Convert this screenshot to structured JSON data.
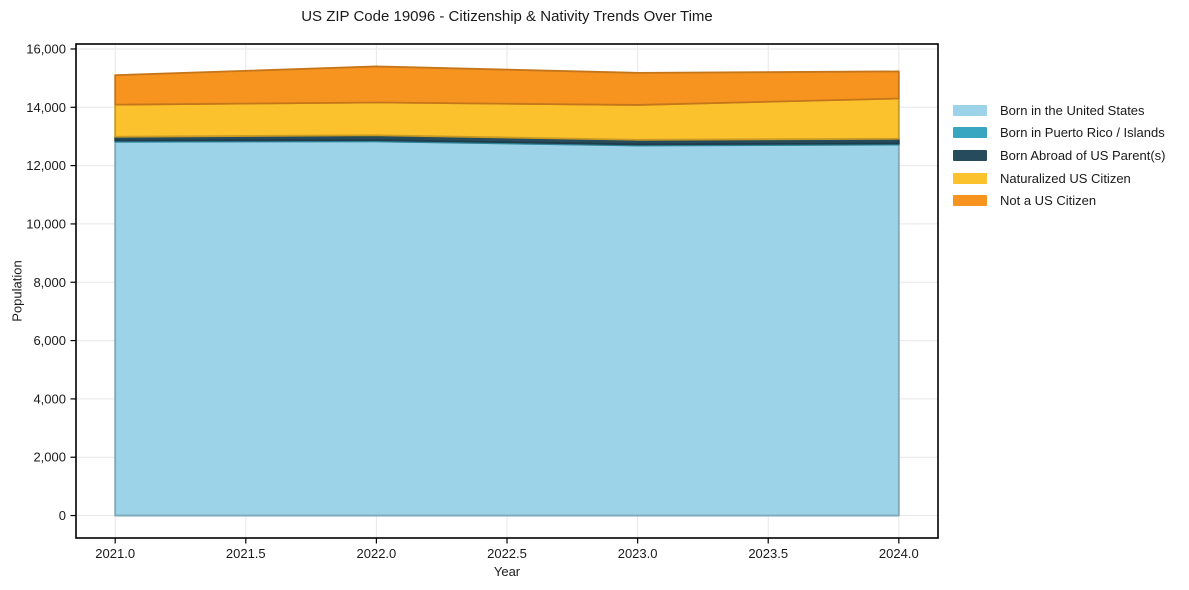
{
  "page": {
    "title": "US ZIP Code 19096 - Citizenship & Nativity Trends Over Time"
  },
  "chart_data": {
    "type": "area",
    "stacked": true,
    "title": "US ZIP Code 19096 - Citizenship & Nativity Trends Over Time",
    "xlabel": "Year",
    "ylabel": "Population",
    "x": [
      2021,
      2022,
      2023,
      2024
    ],
    "series": [
      {
        "name": "Born in the United States",
        "color": "#9cd3e9",
        "values": [
          12820,
          12830,
          12690,
          12720
        ]
      },
      {
        "name": "Born in Puerto Rico / Islands",
        "color": "#38a5c1",
        "values": [
          40,
          45,
          40,
          40
        ]
      },
      {
        "name": "Born Abroad of US Parent(s)",
        "color": "#254b5d",
        "values": [
          130,
          165,
          155,
          160
        ]
      },
      {
        "name": "Naturalized US Citizen",
        "color": "#fcc22d",
        "values": [
          1100,
          1125,
          1195,
          1380
        ]
      },
      {
        "name": "Not a US Citizen",
        "color": "#f79420",
        "values": [
          1010,
          1235,
          1100,
          930
        ]
      }
    ],
    "totals": [
      15100,
      15400,
      15180,
      15230
    ],
    "xlim": [
      2020.85,
      2024.15
    ],
    "ylim": [
      -770,
      16170
    ],
    "xticks": [
      2021.0,
      2021.5,
      2022.0,
      2022.5,
      2023.0,
      2023.5,
      2024.0
    ],
    "xtick_labels": [
      "2021.0",
      "2021.5",
      "2022.0",
      "2022.5",
      "2023.0",
      "2023.5",
      "2024.0"
    ],
    "yticks": [
      0,
      2000,
      4000,
      6000,
      8000,
      10000,
      12000,
      14000,
      16000
    ],
    "ytick_labels": [
      "0",
      "2,000",
      "4,000",
      "6,000",
      "8,000",
      "10,000",
      "12,000",
      "14,000",
      "16,000"
    ],
    "grid": true,
    "grid_color": "#e7e7e7",
    "spine_color": "#000000",
    "text_color": "#1a1a1a",
    "legend_position": "outside-right"
  }
}
